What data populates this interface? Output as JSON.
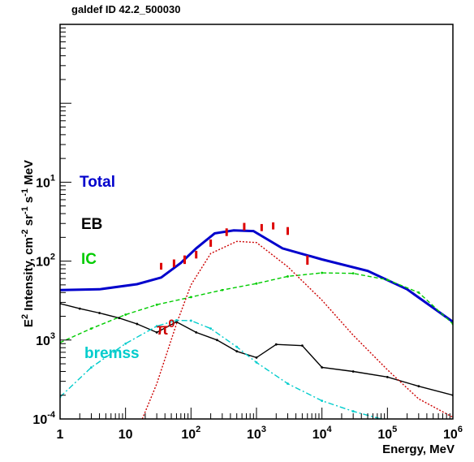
{
  "chart_data": {
    "type": "line",
    "title": "galdef ID 42.2_500030",
    "xlabel": "Energy, MeV",
    "ylabel_parts": [
      "E",
      "2",
      " Intensity, cm",
      "-2",
      " sr",
      "-1",
      " s",
      "-1",
      " MeV"
    ],
    "x_scale": "log",
    "y_scale": "log",
    "xlim": [
      1,
      1000000
    ],
    "ylim": [
      0.0001,
      10
    ],
    "x_ticks": [
      {
        "base": "1",
        "exp": ""
      },
      {
        "base": "10",
        "exp": ""
      },
      {
        "base": "10",
        "exp": "2"
      },
      {
        "base": "10",
        "exp": "3"
      },
      {
        "base": "10",
        "exp": "4"
      },
      {
        "base": "10",
        "exp": "5"
      },
      {
        "base": "10",
        "exp": "6"
      }
    ],
    "y_ticks": [
      {
        "base": "10",
        "exp": "-4"
      },
      {
        "base": "10",
        "exp": "3"
      },
      {
        "base": "10",
        "exp": "2"
      },
      {
        "base": "10",
        "exp": "1"
      }
    ],
    "grid": false,
    "series": [
      {
        "name": "Total",
        "color": "#0000cc",
        "style": "solid",
        "x": [
          1,
          4,
          15,
          35,
          70,
          120,
          230,
          450,
          900,
          2500,
          10000,
          50000,
          200000,
          1000000
        ],
        "y": [
          0.0043,
          0.0044,
          0.0051,
          0.0062,
          0.0095,
          0.0145,
          0.0225,
          0.0245,
          0.024,
          0.0145,
          0.0105,
          0.0075,
          0.0044,
          0.0017
        ]
      },
      {
        "name": "EB",
        "color": "#000000",
        "style": "solid-markers",
        "x": [
          1,
          2,
          4,
          8,
          15,
          30,
          60,
          120,
          250,
          500,
          1000,
          2000,
          5000,
          10000,
          30000,
          100000,
          300000,
          1000000
        ],
        "y": [
          0.0029,
          0.0025,
          0.0022,
          0.0019,
          0.0016,
          0.00125,
          0.0017,
          0.00125,
          0.001,
          0.00072,
          0.0006,
          0.00088,
          0.00085,
          0.00045,
          0.0004,
          0.00034,
          0.00026,
          0.0002
        ]
      },
      {
        "name": "IC",
        "color": "#00cc00",
        "style": "dashed",
        "x": [
          1,
          3,
          10,
          30,
          100,
          300,
          1000,
          3000,
          10000,
          30000,
          100000,
          300000,
          1000000
        ],
        "y": [
          0.00093,
          0.0014,
          0.0021,
          0.0028,
          0.0035,
          0.0043,
          0.0052,
          0.0064,
          0.0071,
          0.007,
          0.0058,
          0.004,
          0.0016
        ]
      },
      {
        "name": "π",
        "name_sup": "0",
        "color": "#cc0000",
        "style": "dotted",
        "x": [
          18,
          30,
          60,
          100,
          200,
          500,
          1000,
          3000,
          10000,
          30000,
          100000,
          300000,
          1000000
        ],
        "y": [
          0.0001,
          0.00028,
          0.0016,
          0.005,
          0.0125,
          0.0178,
          0.0172,
          0.0085,
          0.0032,
          0.00115,
          0.00042,
          0.00018,
          0.000105
        ]
      },
      {
        "name": "bremss",
        "color": "#00cccc",
        "style": "dashdot",
        "x": [
          1,
          3,
          10,
          30,
          60,
          100,
          200,
          500,
          1000,
          3000,
          10000,
          30000,
          80000
        ],
        "y": [
          0.00019,
          0.00045,
          0.0009,
          0.0015,
          0.00178,
          0.00176,
          0.0014,
          0.00082,
          0.00052,
          0.00028,
          0.00017,
          0.000125,
          0.0001
        ]
      },
      {
        "name": "",
        "color": "#dd0000",
        "style": "data-bars",
        "x": [
          35,
          55,
          80,
          120,
          200,
          350,
          650,
          1200,
          1800,
          3000,
          6000
        ],
        "y_low": [
          0.0078,
          0.0084,
          0.0092,
          0.0108,
          0.0152,
          0.0208,
          0.0245,
          0.024,
          0.0252,
          0.0215,
          0.009
        ],
        "y_high": [
          0.0095,
          0.0105,
          0.0118,
          0.0135,
          0.0188,
          0.026,
          0.0305,
          0.0295,
          0.031,
          0.027,
          0.0118
        ]
      }
    ]
  }
}
